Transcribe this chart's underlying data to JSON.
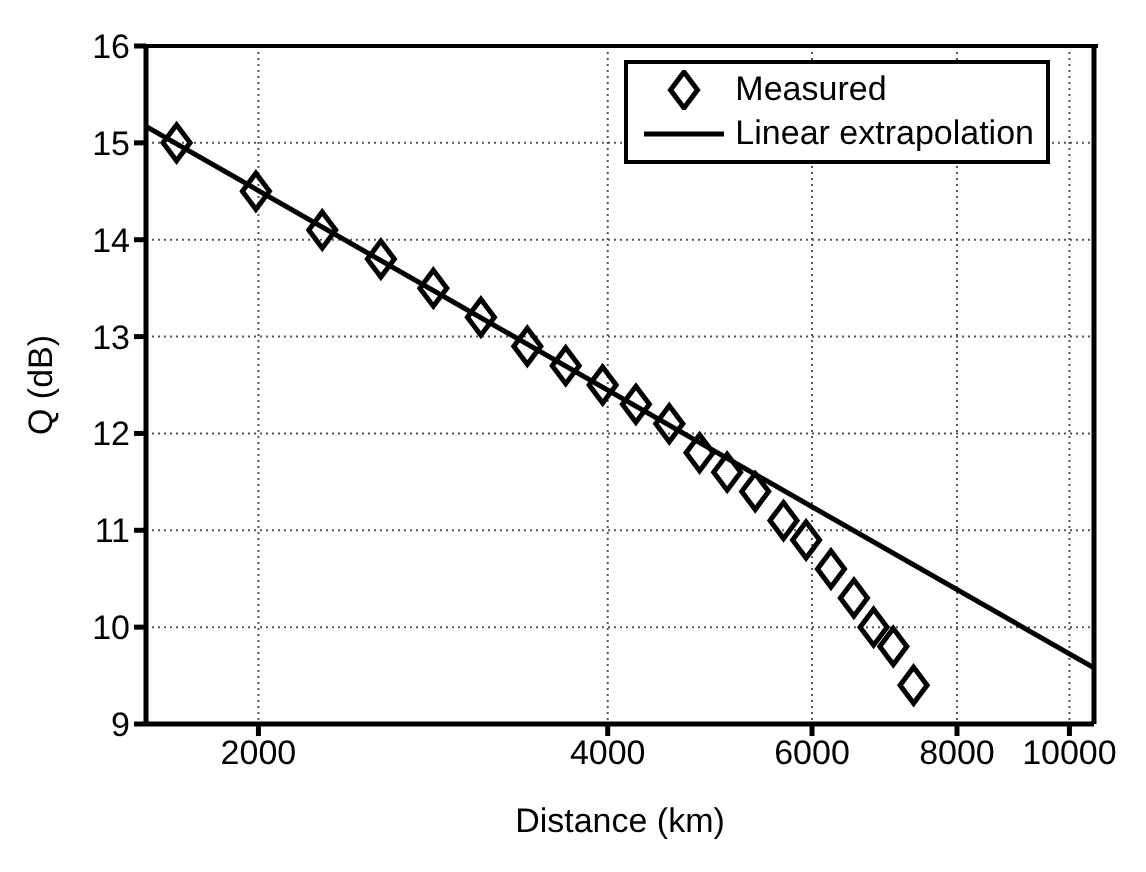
{
  "chart_data": {
    "type": "scatter",
    "xlabel": "Distance (km)",
    "ylabel": "Q (dB)",
    "log": "x",
    "xlim": [
      1600,
      10500
    ],
    "ylim": [
      9,
      16
    ],
    "xticks": [
      2000,
      4000,
      6000,
      8000,
      10000
    ],
    "yticks": [
      9,
      10,
      11,
      12,
      13,
      14,
      15,
      16
    ],
    "grid": true,
    "legend": "top right",
    "series": [
      {
        "name": "Measured",
        "marker": "diamond",
        "color": "#000000",
        "x": [
          1700,
          1990,
          2270,
          2550,
          2830,
          3110,
          3410,
          3680,
          3960,
          4230,
          4520,
          4800,
          5070,
          5360,
          5670,
          5930,
          6230,
          6520,
          6780,
          7050,
          7340
        ],
        "values": [
          15.0,
          14.5,
          14.1,
          13.8,
          13.5,
          13.2,
          12.9,
          12.7,
          12.5,
          12.3,
          12.1,
          11.8,
          11.6,
          11.4,
          11.1,
          10.9,
          10.6,
          10.3,
          10.0,
          9.8,
          9.4
        ]
      },
      {
        "name": "Linear extrapolation",
        "type": "line",
        "marker": "none",
        "line_style": "solid",
        "color": "#000000",
        "x": [
          1600,
          10500
        ],
        "values": [
          15.17,
          9.58
        ]
      }
    ]
  }
}
